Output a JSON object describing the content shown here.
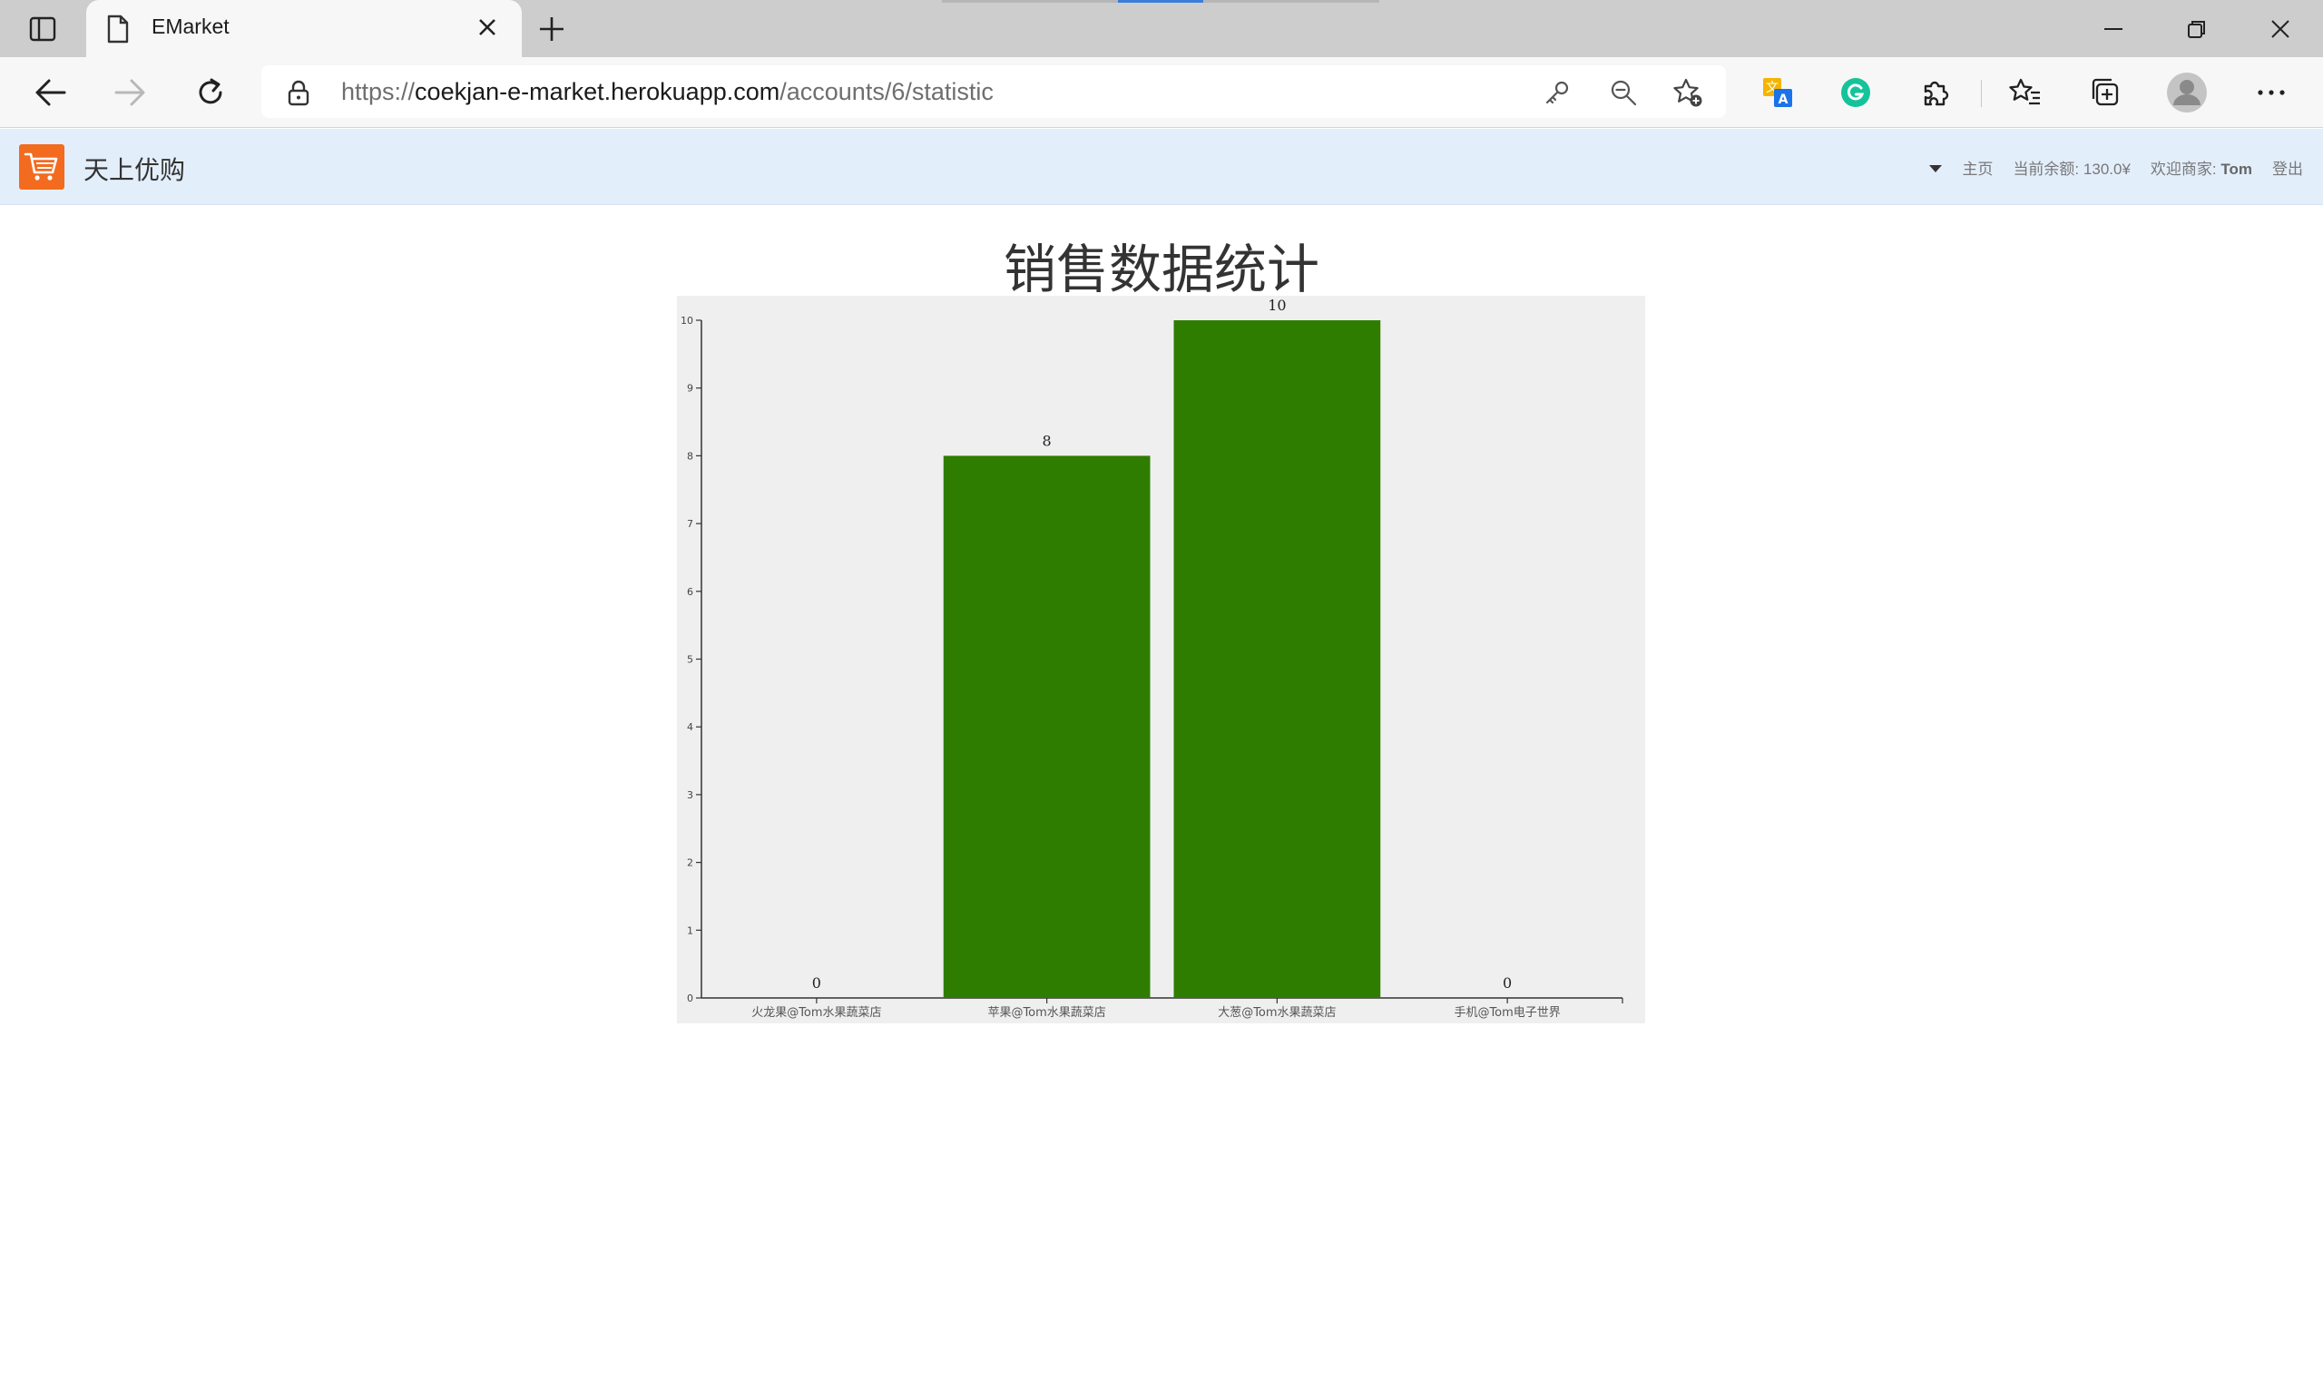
{
  "browser": {
    "tab_title": "EMarket",
    "url_prefix": "https://",
    "url_host": "coekjan-e-market.herokuapp.com",
    "url_path": "/accounts/6/statistic"
  },
  "site": {
    "brand": "天上优购",
    "nav_home": "主页",
    "balance_label": "当前余额:",
    "balance_value": "130.0¥",
    "welcome_label": "欢迎商家:",
    "merchant_name": "Tom",
    "logout": "登出"
  },
  "page": {
    "title": "销售数据统计"
  },
  "chart_data": {
    "type": "bar",
    "categories": [
      "火龙果@Tom水果蔬菜店",
      "苹果@Tom水果蔬菜店",
      "大葱@Tom水果蔬菜店",
      "手机@Tom电子世界"
    ],
    "values": [
      0,
      8,
      10,
      0
    ],
    "ylim": [
      0,
      10
    ],
    "yticks": [
      0,
      1,
      2,
      3,
      4,
      5,
      6,
      7,
      8,
      9,
      10
    ],
    "bar_color": "#2e7d00",
    "background": "#efefef",
    "grid": false
  },
  "colors": {
    "header_bg": "#e3eefb",
    "logo_bg": "#f36b1f"
  }
}
